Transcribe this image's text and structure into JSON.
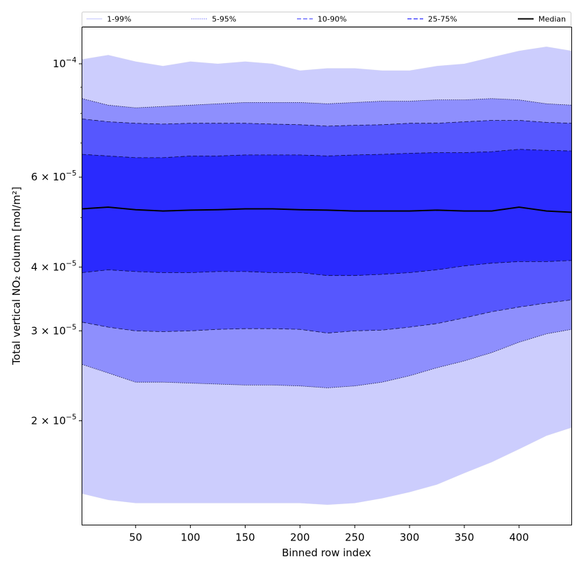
{
  "chart_data": {
    "type": "area",
    "xlabel": "Binned row index",
    "ylabel": "Total vertical NO₂ column [mol/m²]",
    "xlim": [
      1,
      448
    ],
    "ylim": [
      1.25e-05,
      0.000118
    ],
    "yscale": "log",
    "grid": false,
    "legend_position": "top",
    "x_ticks": [
      50,
      100,
      150,
      200,
      250,
      300,
      350,
      400
    ],
    "x_tick_labels": [
      "50",
      "100",
      "150",
      "200",
      "250",
      "300",
      "350",
      "400"
    ],
    "y_ticks": [
      {
        "value": 0.0001,
        "mantissa": "10",
        "exponent": "−4"
      },
      {
        "value": 6e-05,
        "mantissa": "6 × 10",
        "exponent": "−5"
      },
      {
        "value": 4e-05,
        "mantissa": "4 × 10",
        "exponent": "−5"
      },
      {
        "value": 3e-05,
        "mantissa": "3 × 10",
        "exponent": "−5"
      },
      {
        "value": 2e-05,
        "mantissa": "2 × 10",
        "exponent": "−5"
      }
    ],
    "y_minor_ticks": [
      9e-05,
      8e-05,
      7e-05,
      5e-05
    ],
    "x": [
      1,
      25,
      50,
      75,
      100,
      125,
      150,
      175,
      200,
      225,
      250,
      275,
      300,
      325,
      350,
      375,
      400,
      425,
      448
    ],
    "bands": [
      {
        "name": "1-99%",
        "color": "#cccdfd",
        "line_color": "#d8d8e8",
        "line_style": "solid",
        "lower": [
          1.44e-05,
          1.4e-05,
          1.38e-05,
          1.38e-05,
          1.38e-05,
          1.38e-05,
          1.38e-05,
          1.38e-05,
          1.38e-05,
          1.37e-05,
          1.38e-05,
          1.41e-05,
          1.45e-05,
          1.5e-05,
          1.58e-05,
          1.66e-05,
          1.76e-05,
          1.87e-05,
          1.94e-05
        ],
        "upper": [
          0.000102,
          0.000104,
          0.000101,
          9.9e-05,
          0.000101,
          0.0001,
          0.000101,
          0.0001,
          9.7e-05,
          9.8e-05,
          9.8e-05,
          9.7e-05,
          9.7e-05,
          9.9e-05,
          0.0001,
          0.000103,
          0.000106,
          0.000108,
          0.000106
        ]
      },
      {
        "name": "5-95%",
        "color": "#8e8ffd",
        "line_color": "#000022",
        "line_style": "dotted",
        "lower": [
          2.58e-05,
          2.48e-05,
          2.38e-05,
          2.38e-05,
          2.37e-05,
          2.36e-05,
          2.35e-05,
          2.35e-05,
          2.34e-05,
          2.32e-05,
          2.34e-05,
          2.38e-05,
          2.45e-05,
          2.54e-05,
          2.62e-05,
          2.72e-05,
          2.85e-05,
          2.96e-05,
          3.02e-05
        ],
        "upper": [
          8.55e-05,
          8.3e-05,
          8.2e-05,
          8.25e-05,
          8.3e-05,
          8.35e-05,
          8.4e-05,
          8.4e-05,
          8.4e-05,
          8.35e-05,
          8.4e-05,
          8.45e-05,
          8.45e-05,
          8.5e-05,
          8.5e-05,
          8.55e-05,
          8.5e-05,
          8.35e-05,
          8.3e-05
        ]
      },
      {
        "name": "10-90%",
        "color": "#5657fe",
        "line_color": "#000022",
        "line_style": "dashed",
        "lower": [
          3.12e-05,
          3.05e-05,
          3e-05,
          2.99e-05,
          3e-05,
          3.02e-05,
          3.03e-05,
          3.03e-05,
          3.02e-05,
          2.97e-05,
          3e-05,
          3.01e-05,
          3.05e-05,
          3.1e-05,
          3.18e-05,
          3.27e-05,
          3.34e-05,
          3.4e-05,
          3.45e-05
        ],
        "upper": [
          7.8e-05,
          7.7e-05,
          7.65e-05,
          7.62e-05,
          7.65e-05,
          7.65e-05,
          7.65e-05,
          7.62e-05,
          7.6e-05,
          7.55e-05,
          7.58e-05,
          7.6e-05,
          7.65e-05,
          7.65e-05,
          7.7e-05,
          7.75e-05,
          7.75e-05,
          7.68e-05,
          7.65e-05
        ]
      },
      {
        "name": "25-75%",
        "color": "#2a2afe",
        "line_color": "#000022",
        "line_style": "dashed",
        "lower": [
          3.9e-05,
          3.95e-05,
          3.92e-05,
          3.9e-05,
          3.9e-05,
          3.92e-05,
          3.92e-05,
          3.9e-05,
          3.9e-05,
          3.85e-05,
          3.85e-05,
          3.87e-05,
          3.9e-05,
          3.95e-05,
          4.02e-05,
          4.07e-05,
          4.1e-05,
          4.1e-05,
          4.12e-05
        ],
        "upper": [
          6.65e-05,
          6.6e-05,
          6.55e-05,
          6.55e-05,
          6.6e-05,
          6.6e-05,
          6.63e-05,
          6.63e-05,
          6.63e-05,
          6.6e-05,
          6.63e-05,
          6.65e-05,
          6.68e-05,
          6.7e-05,
          6.7e-05,
          6.73e-05,
          6.8e-05,
          6.77e-05,
          6.75e-05
        ]
      }
    ],
    "median": {
      "name": "Median",
      "color": "#000000",
      "values": [
        5.2e-05,
        5.24e-05,
        5.18e-05,
        5.15e-05,
        5.17e-05,
        5.18e-05,
        5.2e-05,
        5.2e-05,
        5.18e-05,
        5.17e-05,
        5.15e-05,
        5.15e-05,
        5.15e-05,
        5.17e-05,
        5.15e-05,
        5.15e-05,
        5.24e-05,
        5.15e-05,
        5.12e-05
      ]
    }
  }
}
